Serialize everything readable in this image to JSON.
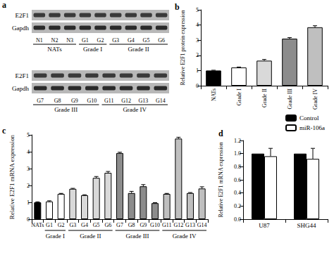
{
  "panel_a": {
    "panel": "a",
    "blots": [
      {
        "rows": [
          "E2F1",
          "Gapdh"
        ],
        "lanes": [
          "N1",
          "N2",
          "N3",
          "G1",
          "G2",
          "G3",
          "G4",
          "G5",
          "G6"
        ],
        "groups": [
          {
            "label": "NATs",
            "from": "N1",
            "to": "N3"
          },
          {
            "label": "Grade I",
            "from": "G1",
            "to": "G2"
          },
          {
            "label": "Grade II",
            "from": "G3",
            "to": "G6"
          }
        ]
      },
      {
        "rows": [
          "E2F1",
          "Gapdh"
        ],
        "lanes": [
          "G7",
          "G8",
          "G9",
          "G10",
          "G11",
          "G12",
          "G13",
          "G14"
        ],
        "groups": [
          {
            "label": "Grade III",
            "from": "G7",
            "to": "G10"
          },
          {
            "label": "Grade IV",
            "from": "G11",
            "to": "G14"
          }
        ]
      }
    ]
  },
  "chart_data": [
    {
      "panel": "b",
      "type": "bar",
      "y_label": "Relative E2F1 protein expression",
      "categories": [
        "NATs",
        "Grade I",
        "Grade II",
        "Grade III",
        "Grade IV"
      ],
      "values": [
        1,
        1.2,
        1.65,
        3.1,
        3.85
      ],
      "errors": [
        0.02,
        0.03,
        0.08,
        0.07,
        0.1
      ],
      "colors": [
        "#000000",
        "#ffffff",
        "#d9d9d9",
        "#8c8c8c",
        "#bfbfbf"
      ],
      "ylim": [
        0,
        5
      ],
      "yticks": [
        0,
        1,
        2,
        3,
        4,
        5
      ],
      "grid": false
    },
    {
      "panel": "c",
      "type": "bar",
      "y_label": "Relative E2F1 mRNA expression",
      "categories": [
        "NATs",
        "G1",
        "G2",
        "G3",
        "G4",
        "G5",
        "G6",
        "G7",
        "G8",
        "G9",
        "G10",
        "G11",
        "G12",
        "G13",
        "G14"
      ],
      "values": [
        1.0,
        1.05,
        1.5,
        1.8,
        1.42,
        2.45,
        2.75,
        3.92,
        1.55,
        1.95,
        0.95,
        1.5,
        4.78,
        1.55,
        1.82
      ],
      "errors": [
        0.03,
        0.04,
        0.03,
        0.03,
        0.03,
        0.08,
        0.08,
        0.05,
        0.1,
        0.1,
        0.03,
        0.03,
        0.08,
        0.03,
        0.1
      ],
      "colors": [
        "#000000",
        "#ffffff",
        "#ffffff",
        "#d9d9d9",
        "#d9d9d9",
        "#d9d9d9",
        "#d9d9d9",
        "#8c8c8c",
        "#8c8c8c",
        "#8c8c8c",
        "#8c8c8c",
        "#bfbfbf",
        "#bfbfbf",
        "#bfbfbf",
        "#bfbfbf"
      ],
      "groups": [
        {
          "label": "Grade I",
          "from": "G1",
          "to": "G2"
        },
        {
          "label": "Grade II",
          "from": "G3",
          "to": "G6"
        },
        {
          "label": "Grade III",
          "from": "G7",
          "to": "G10"
        },
        {
          "label": "Grade IV",
          "from": "G11",
          "to": "G14"
        }
      ],
      "ylim": [
        0,
        5
      ],
      "yticks": [
        0,
        1,
        2,
        3,
        4,
        5
      ],
      "grid": false
    },
    {
      "panel": "d",
      "type": "bar",
      "y_label": "Relative E2F1 mRNA expression",
      "categories": [
        "U87",
        "SHG44"
      ],
      "series": [
        {
          "name": "Control",
          "color": "#000000",
          "values": [
            1,
            1
          ]
        },
        {
          "name": "miR-106a",
          "color": "#ffffff",
          "values": [
            0.96,
            0.92
          ],
          "errors": [
            0.12,
            0.16
          ]
        }
      ],
      "ylim": [
        0,
        1.2
      ],
      "yticks": [
        {
          "value": 0,
          "label": "0.0"
        },
        {
          "value": 0.2,
          "label": "0.2"
        },
        {
          "value": 0.4,
          "label": "0.4"
        },
        {
          "value": 0.6,
          "label": "0.6"
        },
        {
          "value": 0.8,
          "label": "0.8"
        },
        {
          "value": 1.0,
          "label": "1.0"
        },
        {
          "value": 1.2,
          "label": "1.2"
        }
      ],
      "legend": "top-right",
      "grid": false
    }
  ]
}
